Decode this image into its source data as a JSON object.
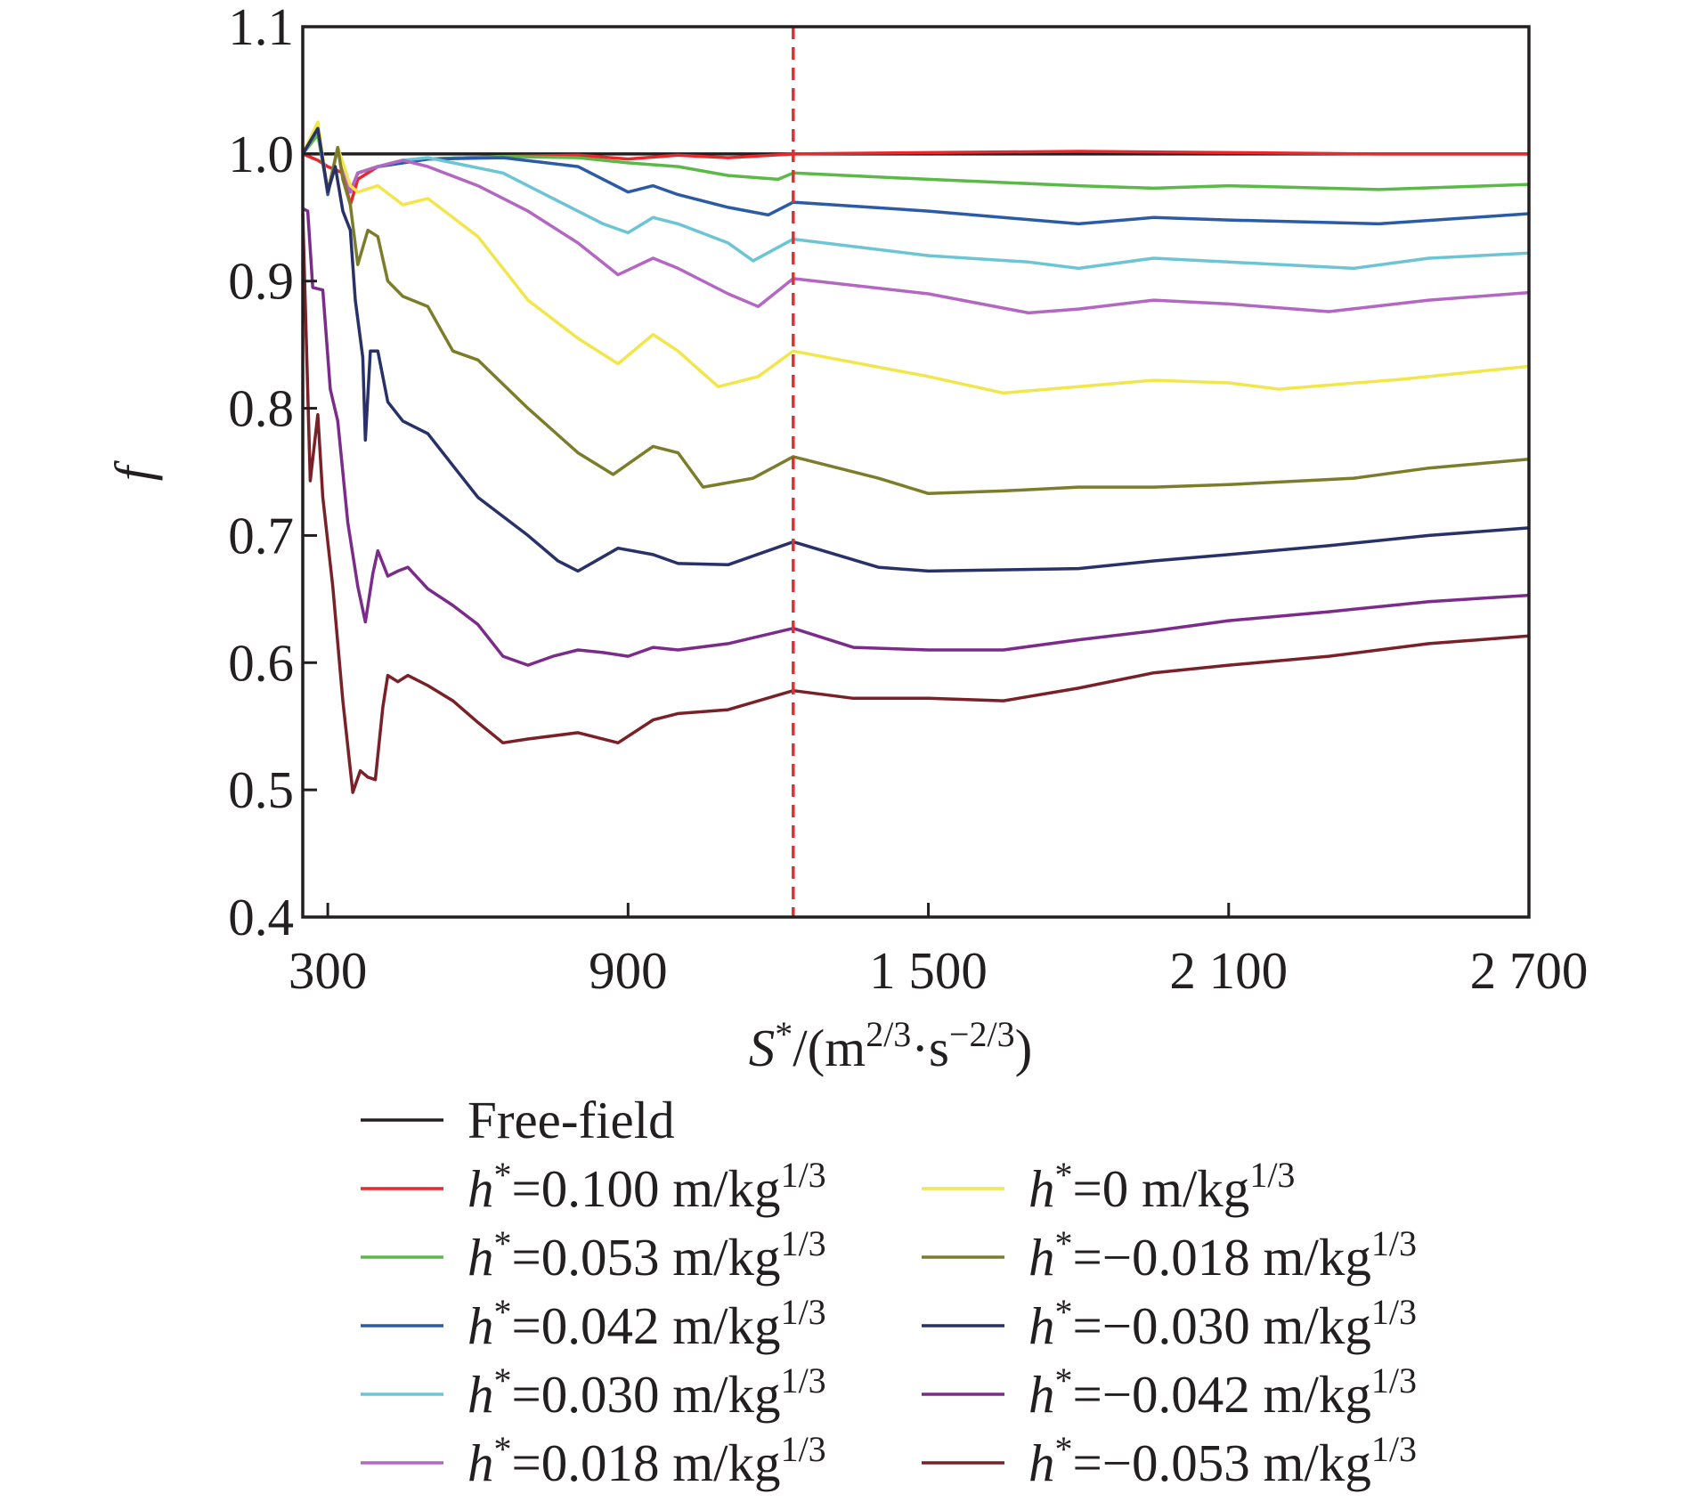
{
  "chart_data": {
    "type": "line",
    "title": "",
    "xlabel": {
      "symbol": "S",
      "sup": "*",
      "unit": "/(m",
      "unit_sup1": "2/3",
      "unit_mid": "·s",
      "unit_sup2": "−2/3",
      "unit_end": ")"
    },
    "ylabel": "f",
    "xlim": [
      250,
      2700
    ],
    "ylim": [
      0.4,
      1.1
    ],
    "x_ticks": [
      {
        "value": 300,
        "label": "300"
      },
      {
        "value": 900,
        "label": "900"
      },
      {
        "value": 1500,
        "label": "1 500"
      },
      {
        "value": 2100,
        "label": "2 100"
      },
      {
        "value": 2700,
        "label": "2 700"
      }
    ],
    "y_ticks": [
      {
        "value": 0.4,
        "label": "0.4"
      },
      {
        "value": 0.5,
        "label": "0.5"
      },
      {
        "value": 0.6,
        "label": "0.6"
      },
      {
        "value": 0.7,
        "label": "0.7"
      },
      {
        "value": 0.8,
        "label": "0.8"
      },
      {
        "value": 0.9,
        "label": "0.9"
      },
      {
        "value": 1.0,
        "label": "1.0"
      },
      {
        "value": 1.1,
        "label": "1.1"
      }
    ],
    "grid": false,
    "legend_position": "below",
    "reference_line": {
      "x": 1230,
      "color": "#e03030",
      "style": "dashed"
    },
    "series": [
      {
        "name": "Free-field",
        "color": "#231f20",
        "points": [
          [
            250,
            1.0
          ],
          [
            2700,
            1.0
          ]
        ]
      },
      {
        "name": "h*=0.100 m/kg1/3",
        "color": "#e8282b",
        "points": [
          [
            250,
            1.0
          ],
          [
            280,
            0.995
          ],
          [
            300,
            0.99
          ],
          [
            330,
            0.985
          ],
          [
            345,
            0.96
          ],
          [
            360,
            0.98
          ],
          [
            400,
            0.99
          ],
          [
            500,
            0.996
          ],
          [
            650,
            0.998
          ],
          [
            800,
            0.999
          ],
          [
            900,
            0.996
          ],
          [
            1000,
            0.999
          ],
          [
            1100,
            0.997
          ],
          [
            1230,
            1.0
          ],
          [
            1500,
            1.001
          ],
          [
            1800,
            1.002
          ],
          [
            2100,
            1.001
          ],
          [
            2400,
            1.0
          ],
          [
            2700,
            1.0
          ]
        ]
      },
      {
        "name": "h*=0.053 m/kg1/3",
        "color": "#5ab947",
        "points": [
          [
            250,
            1.0
          ],
          [
            280,
            1.015
          ],
          [
            300,
            0.97
          ],
          [
            320,
            1.005
          ],
          [
            345,
            0.97
          ],
          [
            360,
            0.985
          ],
          [
            400,
            0.99
          ],
          [
            500,
            0.996
          ],
          [
            650,
            0.998
          ],
          [
            800,
            0.997
          ],
          [
            900,
            0.993
          ],
          [
            1000,
            0.99
          ],
          [
            1100,
            0.983
          ],
          [
            1200,
            0.98
          ],
          [
            1230,
            0.985
          ],
          [
            1500,
            0.98
          ],
          [
            1800,
            0.975
          ],
          [
            1950,
            0.973
          ],
          [
            2100,
            0.975
          ],
          [
            2400,
            0.972
          ],
          [
            2700,
            0.976
          ]
        ]
      },
      {
        "name": "h*=0.042 m/kg1/3",
        "color": "#2b5ba7",
        "points": [
          [
            250,
            1.0
          ],
          [
            280,
            1.02
          ],
          [
            300,
            0.968
          ],
          [
            320,
            1.005
          ],
          [
            345,
            0.97
          ],
          [
            360,
            0.985
          ],
          [
            400,
            0.99
          ],
          [
            500,
            0.996
          ],
          [
            650,
            0.997
          ],
          [
            800,
            0.99
          ],
          [
            900,
            0.97
          ],
          [
            950,
            0.975
          ],
          [
            1000,
            0.968
          ],
          [
            1100,
            0.958
          ],
          [
            1180,
            0.952
          ],
          [
            1230,
            0.962
          ],
          [
            1500,
            0.955
          ],
          [
            1800,
            0.945
          ],
          [
            1950,
            0.95
          ],
          [
            2100,
            0.948
          ],
          [
            2400,
            0.945
          ],
          [
            2700,
            0.953
          ]
        ]
      },
      {
        "name": "h*=0.030 m/kg1/3",
        "color": "#6cc5d4",
        "points": [
          [
            250,
            1.0
          ],
          [
            280,
            1.02
          ],
          [
            300,
            0.97
          ],
          [
            320,
            1.005
          ],
          [
            345,
            0.97
          ],
          [
            360,
            0.985
          ],
          [
            400,
            0.99
          ],
          [
            450,
            0.995
          ],
          [
            500,
            0.997
          ],
          [
            650,
            0.985
          ],
          [
            750,
            0.965
          ],
          [
            850,
            0.945
          ],
          [
            900,
            0.938
          ],
          [
            950,
            0.95
          ],
          [
            1000,
            0.945
          ],
          [
            1100,
            0.93
          ],
          [
            1150,
            0.916
          ],
          [
            1230,
            0.933
          ],
          [
            1500,
            0.92
          ],
          [
            1700,
            0.915
          ],
          [
            1800,
            0.91
          ],
          [
            1950,
            0.918
          ],
          [
            2100,
            0.915
          ],
          [
            2350,
            0.91
          ],
          [
            2500,
            0.918
          ],
          [
            2700,
            0.922
          ]
        ]
      },
      {
        "name": "h*=0.018 m/kg1/3",
        "color": "#b366c2",
        "points": [
          [
            250,
            1.0
          ],
          [
            280,
            1.02
          ],
          [
            300,
            0.97
          ],
          [
            320,
            1.005
          ],
          [
            345,
            0.97
          ],
          [
            360,
            0.985
          ],
          [
            400,
            0.99
          ],
          [
            450,
            0.995
          ],
          [
            500,
            0.99
          ],
          [
            600,
            0.975
          ],
          [
            700,
            0.955
          ],
          [
            800,
            0.93
          ],
          [
            880,
            0.905
          ],
          [
            950,
            0.918
          ],
          [
            1000,
            0.91
          ],
          [
            1100,
            0.89
          ],
          [
            1160,
            0.88
          ],
          [
            1230,
            0.902
          ],
          [
            1500,
            0.89
          ],
          [
            1700,
            0.875
          ],
          [
            1800,
            0.878
          ],
          [
            1950,
            0.885
          ],
          [
            2100,
            0.882
          ],
          [
            2300,
            0.876
          ],
          [
            2500,
            0.885
          ],
          [
            2700,
            0.891
          ]
        ]
      },
      {
        "name": "h*=0 m/kg1/3",
        "color": "#f1e64c",
        "points": [
          [
            250,
            1.0
          ],
          [
            280,
            1.025
          ],
          [
            300,
            0.97
          ],
          [
            320,
            1.005
          ],
          [
            345,
            0.975
          ],
          [
            360,
            0.97
          ],
          [
            400,
            0.975
          ],
          [
            450,
            0.96
          ],
          [
            500,
            0.965
          ],
          [
            600,
            0.935
          ],
          [
            700,
            0.885
          ],
          [
            800,
            0.855
          ],
          [
            880,
            0.835
          ],
          [
            950,
            0.858
          ],
          [
            1000,
            0.845
          ],
          [
            1080,
            0.817
          ],
          [
            1160,
            0.825
          ],
          [
            1230,
            0.845
          ],
          [
            1500,
            0.825
          ],
          [
            1650,
            0.812
          ],
          [
            1800,
            0.817
          ],
          [
            1950,
            0.822
          ],
          [
            2100,
            0.82
          ],
          [
            2200,
            0.815
          ],
          [
            2450,
            0.823
          ],
          [
            2700,
            0.833
          ]
        ]
      },
      {
        "name": "h*=−0.018 m/kg1/3",
        "color": "#7c7d2b",
        "points": [
          [
            250,
            1.0
          ],
          [
            280,
            1.02
          ],
          [
            300,
            0.97
          ],
          [
            320,
            1.005
          ],
          [
            330,
            0.98
          ],
          [
            345,
            0.96
          ],
          [
            360,
            0.913
          ],
          [
            380,
            0.94
          ],
          [
            400,
            0.935
          ],
          [
            420,
            0.9
          ],
          [
            450,
            0.888
          ],
          [
            500,
            0.88
          ],
          [
            550,
            0.845
          ],
          [
            600,
            0.838
          ],
          [
            700,
            0.8
          ],
          [
            800,
            0.765
          ],
          [
            870,
            0.748
          ],
          [
            950,
            0.77
          ],
          [
            1000,
            0.765
          ],
          [
            1050,
            0.738
          ],
          [
            1150,
            0.745
          ],
          [
            1230,
            0.762
          ],
          [
            1400,
            0.745
          ],
          [
            1500,
            0.733
          ],
          [
            1650,
            0.735
          ],
          [
            1800,
            0.738
          ],
          [
            1950,
            0.738
          ],
          [
            2100,
            0.74
          ],
          [
            2350,
            0.745
          ],
          [
            2500,
            0.753
          ],
          [
            2700,
            0.76
          ]
        ]
      },
      {
        "name": "h*=−0.030 m/kg1/3",
        "color": "#283168",
        "points": [
          [
            250,
            1.0
          ],
          [
            280,
            1.02
          ],
          [
            300,
            0.97
          ],
          [
            315,
            0.99
          ],
          [
            330,
            0.955
          ],
          [
            345,
            0.94
          ],
          [
            355,
            0.885
          ],
          [
            370,
            0.84
          ],
          [
            375,
            0.775
          ],
          [
            385,
            0.845
          ],
          [
            400,
            0.845
          ],
          [
            420,
            0.805
          ],
          [
            450,
            0.79
          ],
          [
            500,
            0.78
          ],
          [
            550,
            0.755
          ],
          [
            600,
            0.73
          ],
          [
            700,
            0.7
          ],
          [
            760,
            0.68
          ],
          [
            800,
            0.672
          ],
          [
            880,
            0.69
          ],
          [
            950,
            0.685
          ],
          [
            1000,
            0.678
          ],
          [
            1100,
            0.677
          ],
          [
            1230,
            0.695
          ],
          [
            1400,
            0.675
          ],
          [
            1500,
            0.672
          ],
          [
            1650,
            0.673
          ],
          [
            1800,
            0.674
          ],
          [
            1950,
            0.68
          ],
          [
            2100,
            0.685
          ],
          [
            2300,
            0.692
          ],
          [
            2500,
            0.7
          ],
          [
            2700,
            0.706
          ]
        ]
      },
      {
        "name": "h*=−0.042 m/kg1/3",
        "color": "#7b2c8a",
        "points": [
          [
            250,
            0.957
          ],
          [
            260,
            0.955
          ],
          [
            270,
            0.895
          ],
          [
            290,
            0.893
          ],
          [
            305,
            0.815
          ],
          [
            320,
            0.79
          ],
          [
            340,
            0.71
          ],
          [
            360,
            0.66
          ],
          [
            375,
            0.632
          ],
          [
            390,
            0.67
          ],
          [
            400,
            0.688
          ],
          [
            420,
            0.668
          ],
          [
            440,
            0.672
          ],
          [
            460,
            0.675
          ],
          [
            500,
            0.658
          ],
          [
            550,
            0.645
          ],
          [
            600,
            0.63
          ],
          [
            650,
            0.605
          ],
          [
            700,
            0.598
          ],
          [
            750,
            0.605
          ],
          [
            800,
            0.61
          ],
          [
            850,
            0.608
          ],
          [
            900,
            0.605
          ],
          [
            950,
            0.612
          ],
          [
            1000,
            0.61
          ],
          [
            1100,
            0.615
          ],
          [
            1230,
            0.627
          ],
          [
            1350,
            0.612
          ],
          [
            1500,
            0.61
          ],
          [
            1650,
            0.61
          ],
          [
            1800,
            0.618
          ],
          [
            1950,
            0.625
          ],
          [
            2100,
            0.633
          ],
          [
            2300,
            0.64
          ],
          [
            2500,
            0.648
          ],
          [
            2700,
            0.653
          ]
        ]
      },
      {
        "name": "h*=−0.053 m/kg1/3",
        "color": "#7a2028",
        "points": [
          [
            250,
            0.953
          ],
          [
            265,
            0.743
          ],
          [
            280,
            0.795
          ],
          [
            290,
            0.73
          ],
          [
            310,
            0.66
          ],
          [
            330,
            0.57
          ],
          [
            350,
            0.498
          ],
          [
            365,
            0.515
          ],
          [
            380,
            0.51
          ],
          [
            395,
            0.508
          ],
          [
            410,
            0.565
          ],
          [
            420,
            0.59
          ],
          [
            440,
            0.585
          ],
          [
            460,
            0.59
          ],
          [
            500,
            0.582
          ],
          [
            550,
            0.57
          ],
          [
            600,
            0.553
          ],
          [
            650,
            0.537
          ],
          [
            700,
            0.54
          ],
          [
            800,
            0.545
          ],
          [
            880,
            0.537
          ],
          [
            950,
            0.555
          ],
          [
            1000,
            0.56
          ],
          [
            1100,
            0.563
          ],
          [
            1230,
            0.578
          ],
          [
            1350,
            0.572
          ],
          [
            1500,
            0.572
          ],
          [
            1650,
            0.57
          ],
          [
            1800,
            0.58
          ],
          [
            1950,
            0.592
          ],
          [
            2100,
            0.598
          ],
          [
            2300,
            0.605
          ],
          [
            2500,
            0.615
          ],
          [
            2700,
            0.621
          ]
        ]
      }
    ]
  }
}
